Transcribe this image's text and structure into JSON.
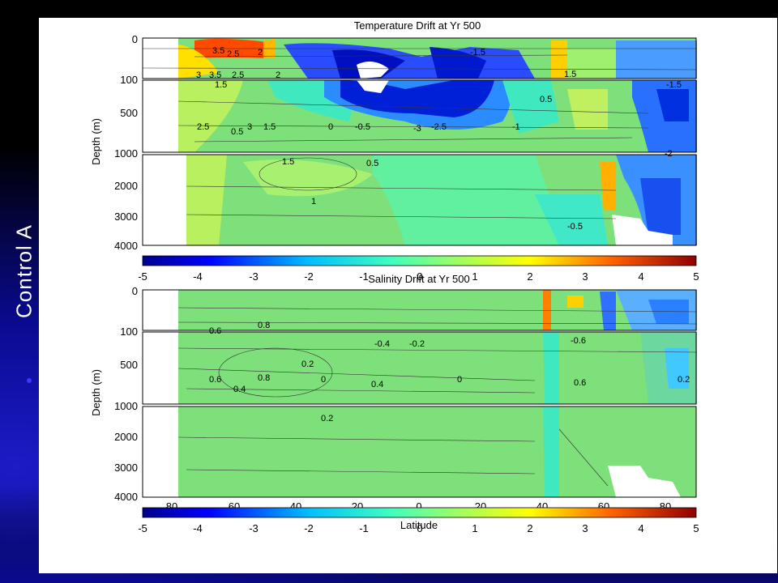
{
  "slide": {
    "sidebar_title": "Control   A",
    "colors": {
      "background": "#000000",
      "gradient_blue": "#0a0aa0",
      "figure_bg": "#ffffff",
      "field_base": "#7ee07a"
    }
  },
  "panels": [
    {
      "id": "temperature",
      "title": "Temperature Drift at Yr 500",
      "ylabel": "Depth (m)",
      "depth_segments": [
        {
          "ticks": [
            "0",
            "100"
          ]
        },
        {
          "ticks": [
            "500",
            "1000"
          ]
        },
        {
          "ticks": [
            "2000",
            "3000",
            "4000"
          ]
        }
      ],
      "colorbar": {
        "ticks": [
          "-5",
          "-4",
          "-3",
          "-2",
          "-1",
          "0",
          "1",
          "2",
          "3",
          "4",
          "5"
        ],
        "range": [
          -5,
          5
        ]
      },
      "contour_labels": [
        "3.5",
        "2.5",
        "2",
        "3",
        "3.5",
        "2.5",
        "2",
        "1.5",
        "2.5",
        "0.5",
        "3",
        "1.5",
        "0",
        "-0.5",
        "-3",
        "-2.5",
        "-1.5",
        "-1",
        "0.5",
        "1.5",
        "0.5",
        "1",
        "-0.5",
        "-1.5",
        "-2",
        "1.5"
      ]
    },
    {
      "id": "salinity",
      "title": "Salinity Drift at Yr 500",
      "ylabel": "Depth (m)",
      "depth_segments": [
        {
          "ticks": [
            "0",
            "100"
          ]
        },
        {
          "ticks": [
            "500",
            "1000"
          ]
        },
        {
          "ticks": [
            "2000",
            "3000",
            "4000"
          ]
        }
      ],
      "xaxis": {
        "label": "Latitude",
        "ticks": [
          "80",
          "60",
          "40",
          "20",
          "0",
          "20",
          "40",
          "60",
          "80"
        ]
      },
      "colorbar": {
        "ticks": [
          "-5",
          "-4",
          "-3",
          "-2",
          "-1",
          "0",
          "1",
          "2",
          "3",
          "4",
          "5"
        ],
        "range": [
          -5,
          5
        ]
      },
      "contour_labels": [
        "0.6",
        "0.8",
        "0.2",
        "0.6",
        "0.4",
        "0.8",
        "-0.4",
        "-0.2",
        "0",
        "0.4",
        "-0.6",
        "0.6",
        "0.2",
        "0",
        "0.2"
      ]
    }
  ]
}
